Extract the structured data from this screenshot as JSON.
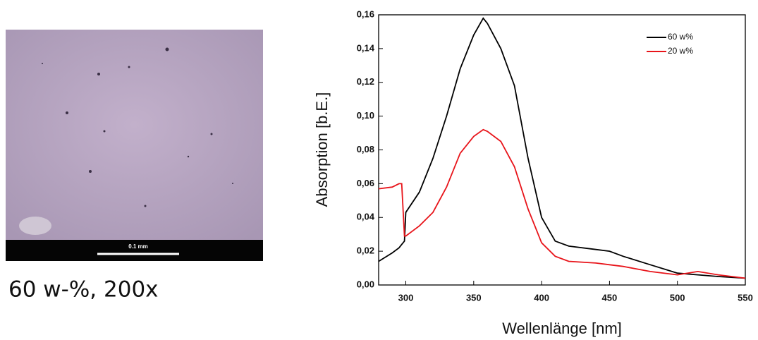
{
  "image": {
    "scale_label": "0.1 mm",
    "caption": "60 w-%, 200x"
  },
  "chart_data": {
    "type": "line",
    "xlabel": "Wellenlänge [nm]",
    "ylabel": "Absorption [b.E.]",
    "x": [
      280,
      290,
      295,
      297,
      299,
      300,
      310,
      320,
      330,
      340,
      350,
      357,
      360,
      370,
      380,
      390,
      400,
      410,
      420,
      440,
      450,
      460,
      480,
      500,
      515,
      530,
      550
    ],
    "series": [
      {
        "name": "60 w%",
        "color": "#000000",
        "values": [
          0.014,
          0.019,
          0.022,
          0.024,
          0.026,
          0.043,
          0.055,
          0.075,
          0.1,
          0.128,
          0.148,
          0.158,
          0.155,
          0.14,
          0.118,
          0.075,
          0.04,
          0.026,
          0.023,
          0.021,
          0.02,
          0.017,
          0.012,
          0.007,
          0.006,
          0.005,
          0.004
        ]
      },
      {
        "name": "20 w%",
        "color": "#e8141a",
        "values": [
          0.057,
          0.058,
          0.06,
          0.06,
          0.029,
          0.029,
          0.035,
          0.043,
          0.058,
          0.078,
          0.088,
          0.092,
          0.091,
          0.085,
          0.07,
          0.045,
          0.025,
          0.017,
          0.014,
          0.013,
          0.012,
          0.011,
          0.008,
          0.006,
          0.008,
          0.006,
          0.004
        ]
      }
    ],
    "xlim": [
      280,
      550
    ],
    "xticks": [
      300,
      350,
      400,
      450,
      500,
      550
    ],
    "ylim": [
      0,
      0.16
    ],
    "yticks": [
      {
        "value": 0,
        "label": "0,00"
      },
      {
        "value": 0.02,
        "label": "0,02"
      },
      {
        "value": 0.04,
        "label": "0,04"
      },
      {
        "value": 0.06,
        "label": "0,06"
      },
      {
        "value": 0.08,
        "label": "0,08"
      },
      {
        "value": 0.1,
        "label": "0,10"
      },
      {
        "value": 0.12,
        "label": "0,12"
      },
      {
        "value": 0.14,
        "label": "0,14"
      },
      {
        "value": 0.16,
        "label": "0,16"
      }
    ],
    "legend": "upper right"
  }
}
